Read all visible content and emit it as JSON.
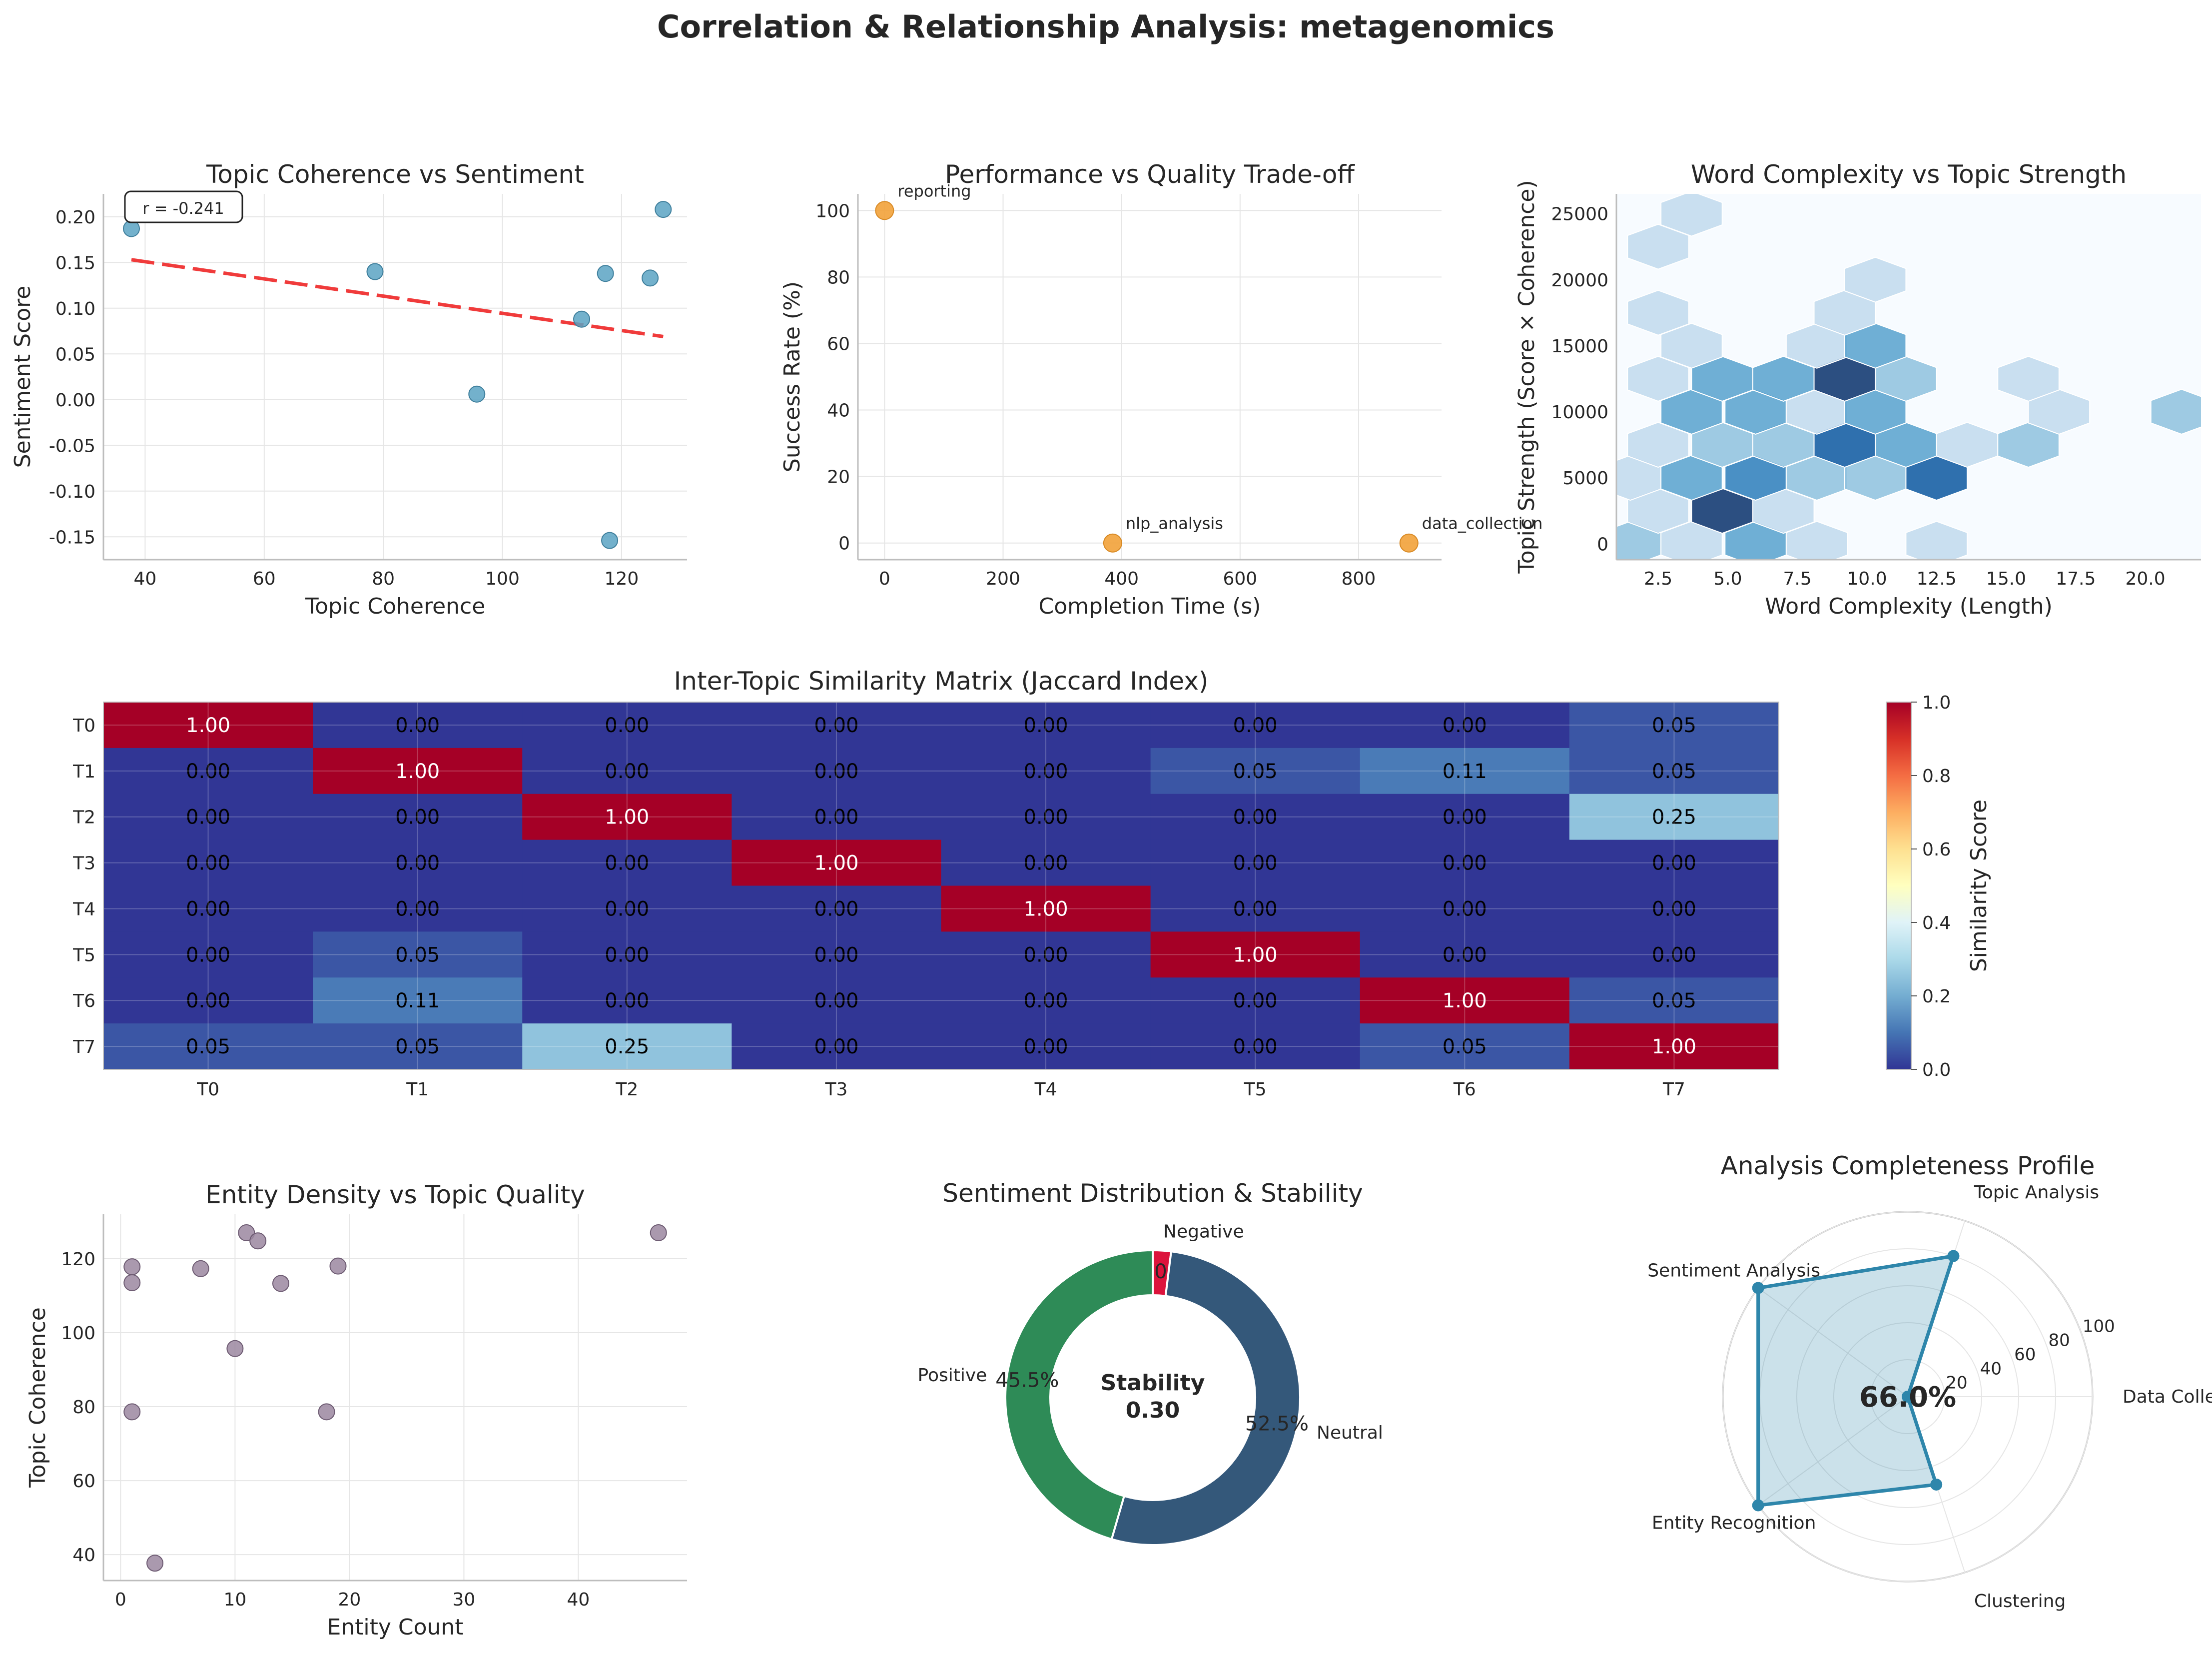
{
  "figure": {
    "title": "Correlation & Relationship Analysis: metagenomics"
  },
  "chart_data": [
    {
      "id": "topic-coherence-vs-sentiment",
      "type": "scatter",
      "title": "Topic Coherence vs Sentiment",
      "xlabel": "Topic Coherence",
      "ylabel": "Sentiment Score",
      "xlim": [
        33,
        131
      ],
      "ylim": [
        -0.175,
        0.225
      ],
      "xticks": [
        40,
        60,
        80,
        100,
        120
      ],
      "yticks": [
        -0.15,
        -0.1,
        -0.05,
        0.0,
        0.05,
        0.1,
        0.15,
        0.2
      ],
      "grid": true,
      "color": "#5ba3c3",
      "points": [
        {
          "x": 37.7,
          "y": 0.187
        },
        {
          "x": 78.6,
          "y": 0.14
        },
        {
          "x": 95.7,
          "y": 0.006
        },
        {
          "x": 113.3,
          "y": 0.088
        },
        {
          "x": 117.3,
          "y": 0.138
        },
        {
          "x": 118.0,
          "y": -0.154
        },
        {
          "x": 124.8,
          "y": 0.133
        },
        {
          "x": 127.0,
          "y": 0.208
        }
      ],
      "trendline": {
        "x": [
          37.7,
          127.0
        ],
        "y": [
          0.153,
          0.069
        ],
        "color": "#f03b3b"
      },
      "annotation": "r = -0.241"
    },
    {
      "id": "performance-vs-quality",
      "type": "scatter",
      "title": "Performance vs Quality Trade-off",
      "xlabel": "Completion Time (s)",
      "ylabel": "Success Rate (%)",
      "xlim": [
        -45,
        940
      ],
      "ylim": [
        -5,
        105
      ],
      "xticks": [
        0,
        200,
        400,
        600,
        800
      ],
      "yticks": [
        0,
        20,
        40,
        60,
        80,
        100
      ],
      "grid": true,
      "color": "#f2a23a",
      "points": [
        {
          "x": 0,
          "y": 100,
          "label": "reporting"
        },
        {
          "x": 385,
          "y": 0,
          "label": "nlp_analysis"
        },
        {
          "x": 885,
          "y": 0,
          "label": "data_collection"
        }
      ]
    },
    {
      "id": "word-complexity-vs-topic-strength",
      "type": "heatmap",
      "subtype": "hexbin",
      "title": "Word Complexity vs Topic Strength",
      "xlabel": "Word Complexity (Length)",
      "ylabel": "Topic Strength (Score × Coherence)",
      "xlim": [
        1,
        22
      ],
      "ylim": [
        -1200,
        26500
      ],
      "xticks": [
        2.5,
        5.0,
        7.5,
        10.0,
        12.5,
        15.0,
        17.5,
        20.0
      ],
      "yticks": [
        0,
        5000,
        10000,
        15000,
        20000,
        25000
      ],
      "cells": [
        {
          "x": 1.5,
          "y": 0,
          "count": 2
        },
        {
          "x": 3.7,
          "y": 0,
          "count": 1
        },
        {
          "x": 6.0,
          "y": 0,
          "count": 3
        },
        {
          "x": 8.2,
          "y": 0,
          "count": 1
        },
        {
          "x": 12.5,
          "y": 0,
          "count": 1
        },
        {
          "x": 2.5,
          "y": 2500,
          "count": 1
        },
        {
          "x": 4.8,
          "y": 2500,
          "count": 6
        },
        {
          "x": 7.0,
          "y": 2500,
          "count": 1
        },
        {
          "x": 1.5,
          "y": 5000,
          "count": 1
        },
        {
          "x": 3.7,
          "y": 5000,
          "count": 3
        },
        {
          "x": 6.0,
          "y": 5000,
          "count": 4
        },
        {
          "x": 8.2,
          "y": 5000,
          "count": 2
        },
        {
          "x": 10.3,
          "y": 5000,
          "count": 2
        },
        {
          "x": 12.5,
          "y": 5000,
          "count": 5
        },
        {
          "x": 2.5,
          "y": 7500,
          "count": 1
        },
        {
          "x": 4.8,
          "y": 7500,
          "count": 2
        },
        {
          "x": 7.0,
          "y": 7500,
          "count": 2
        },
        {
          "x": 9.2,
          "y": 7500,
          "count": 5
        },
        {
          "x": 11.4,
          "y": 7500,
          "count": 3
        },
        {
          "x": 13.6,
          "y": 7500,
          "count": 1
        },
        {
          "x": 15.8,
          "y": 7500,
          "count": 2
        },
        {
          "x": 3.7,
          "y": 10000,
          "count": 3
        },
        {
          "x": 6.0,
          "y": 10000,
          "count": 3
        },
        {
          "x": 8.2,
          "y": 10000,
          "count": 1
        },
        {
          "x": 10.3,
          "y": 10000,
          "count": 3
        },
        {
          "x": 16.9,
          "y": 10000,
          "count": 1
        },
        {
          "x": 21.3,
          "y": 10000,
          "count": 2
        },
        {
          "x": 2.5,
          "y": 12500,
          "count": 1
        },
        {
          "x": 4.8,
          "y": 12500,
          "count": 3
        },
        {
          "x": 7.0,
          "y": 12500,
          "count": 3
        },
        {
          "x": 9.2,
          "y": 12500,
          "count": 6
        },
        {
          "x": 11.4,
          "y": 12500,
          "count": 2
        },
        {
          "x": 15.8,
          "y": 12500,
          "count": 1
        },
        {
          "x": 3.7,
          "y": 15000,
          "count": 1
        },
        {
          "x": 8.2,
          "y": 15000,
          "count": 1
        },
        {
          "x": 10.3,
          "y": 15000,
          "count": 3
        },
        {
          "x": 2.5,
          "y": 17500,
          "count": 1
        },
        {
          "x": 9.2,
          "y": 17500,
          "count": 1
        },
        {
          "x": 10.3,
          "y": 20000,
          "count": 1
        },
        {
          "x": 2.5,
          "y": 22500,
          "count": 1
        },
        {
          "x": 3.7,
          "y": 25000,
          "count": 1
        }
      ],
      "count_max": 6,
      "colormap": "Blues"
    },
    {
      "id": "inter-topic-similarity",
      "type": "heatmap",
      "title": "Inter-Topic Similarity Matrix (Jaccard Index)",
      "rows": [
        "T0",
        "T1",
        "T2",
        "T3",
        "T4",
        "T5",
        "T6",
        "T7"
      ],
      "cols": [
        "T0",
        "T1",
        "T2",
        "T3",
        "T4",
        "T5",
        "T6",
        "T7"
      ],
      "values": [
        [
          1.0,
          0.0,
          0.0,
          0.0,
          0.0,
          0.0,
          0.0,
          0.05
        ],
        [
          0.0,
          1.0,
          0.0,
          0.0,
          0.0,
          0.05,
          0.11,
          0.05
        ],
        [
          0.0,
          0.0,
          1.0,
          0.0,
          0.0,
          0.0,
          0.0,
          0.25
        ],
        [
          0.0,
          0.0,
          0.0,
          1.0,
          0.0,
          0.0,
          0.0,
          0.0
        ],
        [
          0.0,
          0.0,
          0.0,
          0.0,
          1.0,
          0.0,
          0.0,
          0.0
        ],
        [
          0.0,
          0.05,
          0.0,
          0.0,
          0.0,
          1.0,
          0.0,
          0.0
        ],
        [
          0.0,
          0.11,
          0.0,
          0.0,
          0.0,
          0.0,
          1.0,
          0.05
        ],
        [
          0.05,
          0.05,
          0.25,
          0.0,
          0.0,
          0.0,
          0.05,
          1.0
        ]
      ],
      "colorbar": {
        "label": "Similarity Score",
        "min": 0.0,
        "max": 1.0,
        "ticks": [
          "0.0",
          "0.2",
          "0.4",
          "0.6",
          "0.8",
          "1.0"
        ],
        "colormap": "RdYlBu_r"
      }
    },
    {
      "id": "entity-density-vs-topic-quality",
      "type": "scatter",
      "title": "Entity Density vs Topic Quality",
      "xlabel": "Entity Count",
      "ylabel": "Topic Coherence",
      "xlim": [
        -1.5,
        49.5
      ],
      "ylim": [
        33,
        132
      ],
      "xticks": [
        0,
        10,
        20,
        30,
        40
      ],
      "yticks": [
        40,
        60,
        80,
        100,
        120
      ],
      "grid": true,
      "color": "#9b87a0",
      "points": [
        {
          "x": 1,
          "y": 117.8
        },
        {
          "x": 1,
          "y": 113.5
        },
        {
          "x": 1,
          "y": 78.6
        },
        {
          "x": 3,
          "y": 37.7
        },
        {
          "x": 7,
          "y": 117.3
        },
        {
          "x": 10,
          "y": 95.7
        },
        {
          "x": 11,
          "y": 127.0
        },
        {
          "x": 12,
          "y": 124.8
        },
        {
          "x": 14,
          "y": 113.3
        },
        {
          "x": 18,
          "y": 78.6
        },
        {
          "x": 19,
          "y": 118.0
        },
        {
          "x": 47,
          "y": 127.0
        }
      ]
    },
    {
      "id": "sentiment-distribution",
      "type": "pie",
      "subtype": "donut",
      "title": "Sentiment Distribution & Stability",
      "slices": [
        {
          "label": "Negative",
          "pct_label": "2.0%",
          "value": 2.0,
          "color": "#dc143c"
        },
        {
          "label": "Neutral",
          "pct_label": "52.5%",
          "value": 52.5,
          "color": "#34587a"
        },
        {
          "label": "Positive",
          "pct_label": "45.5%",
          "value": 45.5,
          "color": "#2e8b57"
        }
      ],
      "center_line1": "Stability",
      "center_line2": "0.30"
    },
    {
      "id": "analysis-completeness",
      "type": "line",
      "subtype": "radar",
      "title": "Analysis Completeness Profile",
      "axes": [
        "Data Collection",
        "Topic Analysis",
        "Sentiment Analysis",
        "Entity Recognition",
        "Clustering"
      ],
      "values": [
        0,
        80,
        100,
        100,
        50
      ],
      "rmax": 100,
      "rticks": [
        "20",
        "40",
        "60",
        "80",
        "100"
      ],
      "center_label": "66.0%",
      "color": "#2e86ab"
    }
  ]
}
